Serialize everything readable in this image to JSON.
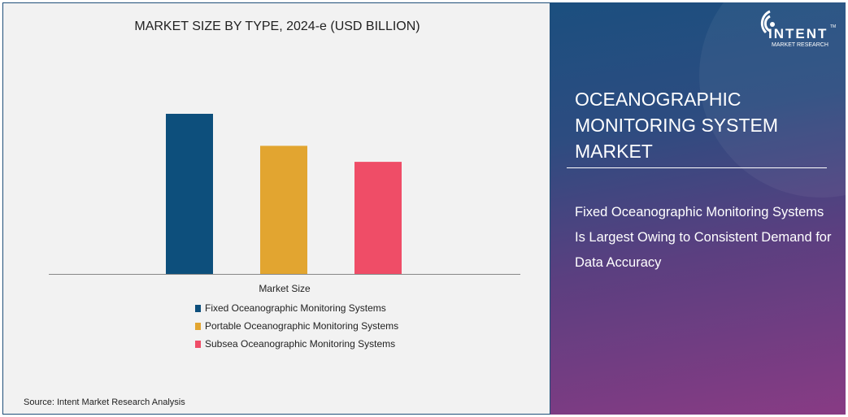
{
  "chart_data": {
    "type": "bar",
    "title": "MARKET SIZE BY TYPE, 2024-e (USD BILLION)",
    "xlabel": "Market Size",
    "ylabel": "",
    "categories": [
      "Market Size"
    ],
    "series": [
      {
        "name": "Fixed Oceanographic Monitoring Systems",
        "values": [
          1.0
        ],
        "color": "#0d4f7c"
      },
      {
        "name": "Portable Oceanographic Monitoring Systems",
        "values": [
          0.8
        ],
        "color": "#e2a530"
      },
      {
        "name": "Subsea Oceanographic Monitoring Systems",
        "values": [
          0.7
        ],
        "color": "#ef4d67"
      }
    ],
    "ylim": [
      0,
      1
    ],
    "grid": false,
    "legend": "bottom"
  },
  "source": "Source: Intent Market Research Analysis",
  "logo": {
    "brand": "INTENT",
    "sub": "MARKET RESEARCH",
    "tm": "TM"
  },
  "panel": {
    "heading": "OCEANOGRAPHIC MONITORING SYSTEM MARKET",
    "insight": "Fixed Oceanographic Monitoring Systems Is Largest Owing to Consistent Demand for Data Accuracy"
  }
}
